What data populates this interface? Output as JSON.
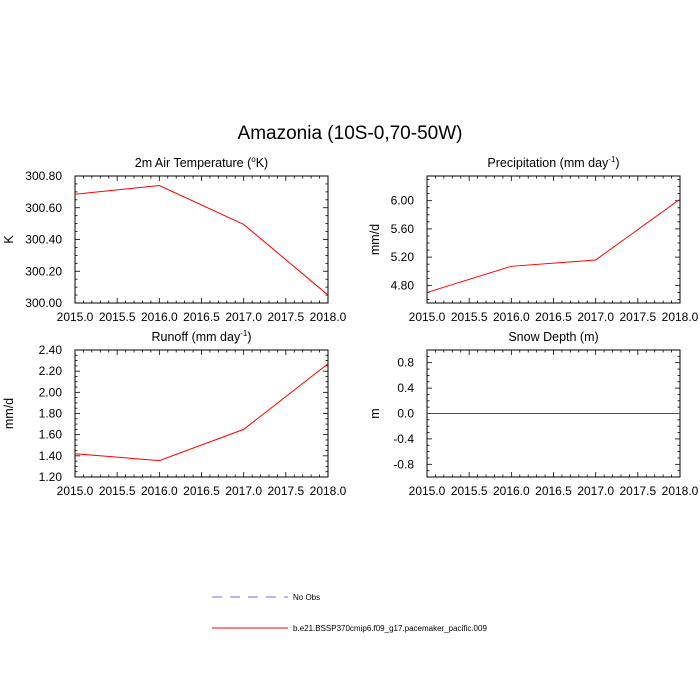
{
  "figure": {
    "title": "Amazonia (10S-0,70-50W)"
  },
  "legend": {
    "items": [
      {
        "label": "No Obs",
        "color": "#6a6aff",
        "dash": true
      },
      {
        "label": "b.e21.BSSP370cmip6.f09_g17.pacemaker_pacific.009",
        "color": "#ff0000",
        "dash": false
      }
    ]
  },
  "chart_data": [
    {
      "type": "line",
      "title": "2m Air Temperature (",
      "title_sup": "o",
      "title_after": "K)",
      "ylabel": "K",
      "x": [
        2015.0,
        2016.0,
        2017.0,
        2018.0
      ],
      "series": [
        {
          "values": [
            300.685,
            300.74,
            300.495,
            300.05
          ],
          "color": "#ff0000"
        }
      ],
      "xlim": [
        2015.0,
        2018.0
      ],
      "ylim": [
        300.0,
        300.8
      ],
      "xticks": [
        2015.0,
        2015.5,
        2016.0,
        2016.5,
        2017.0,
        2017.5,
        2018.0
      ],
      "xticklabels": [
        "2015.0",
        "2015.5",
        "2016.0",
        "2016.5",
        "2017.0",
        "2017.5",
        "2018.0"
      ],
      "yticks": [
        300.0,
        300.2,
        300.4,
        300.6,
        300.8
      ],
      "yticklabels": [
        "300.00",
        "300.20",
        "300.40",
        "300.60",
        "300.80"
      ],
      "yminor": 0.05
    },
    {
      "type": "line",
      "title": "Precipitation (mm day",
      "title_sup": "-1",
      "title_after": ")",
      "ylabel": "mm/d",
      "x": [
        2015.0,
        2016.0,
        2017.0,
        2018.0
      ],
      "series": [
        {
          "values": [
            4.7,
            5.07,
            5.16,
            6.02
          ],
          "color": "#ff0000"
        }
      ],
      "xlim": [
        2015.0,
        2018.0
      ],
      "ylim": [
        4.55,
        6.35
      ],
      "xticks": [
        2015.0,
        2015.5,
        2016.0,
        2016.5,
        2017.0,
        2017.5,
        2018.0
      ],
      "xticklabels": [
        "2015.0",
        "2015.5",
        "2016.0",
        "2016.5",
        "2017.0",
        "2017.5",
        "2018.0"
      ],
      "yticks": [
        4.8,
        5.2,
        5.6,
        6.0
      ],
      "yticklabels": [
        "4.80",
        "5.20",
        "5.60",
        "6.00"
      ],
      "yminor": 0.1
    },
    {
      "type": "line",
      "title": "Runoff (mm day",
      "title_sup": "-1",
      "title_after": ")",
      "ylabel": "mm/d",
      "x": [
        2015.0,
        2016.0,
        2017.0,
        2018.0
      ],
      "series": [
        {
          "values": [
            1.42,
            1.355,
            1.65,
            2.27
          ],
          "color": "#ff0000"
        }
      ],
      "xlim": [
        2015.0,
        2018.0
      ],
      "ylim": [
        1.2,
        2.4
      ],
      "xticks": [
        2015.0,
        2015.5,
        2016.0,
        2016.5,
        2017.0,
        2017.5,
        2018.0
      ],
      "xticklabels": [
        "2015.0",
        "2015.5",
        "2016.0",
        "2016.5",
        "2017.0",
        "2017.5",
        "2018.0"
      ],
      "yticks": [
        1.2,
        1.4,
        1.6,
        1.8,
        2.0,
        2.2,
        2.4
      ],
      "yticklabels": [
        "1.20",
        "1.40",
        "1.60",
        "1.80",
        "2.00",
        "2.20",
        "2.40"
      ],
      "yminor": 0.05
    },
    {
      "type": "line",
      "title": "Snow Depth (m)",
      "title_sup": "",
      "title_after": "",
      "ylabel": "m",
      "x": [
        2015.0,
        2016.0,
        2017.0,
        2018.0
      ],
      "series": [
        {
          "values": [
            0.0,
            0.0,
            0.0,
            0.0
          ],
          "color": "#ff0000"
        }
      ],
      "xlim": [
        2015.0,
        2018.0
      ],
      "ylim": [
        -1.0,
        1.0
      ],
      "xticks": [
        2015.0,
        2015.5,
        2016.0,
        2016.5,
        2017.0,
        2017.5,
        2018.0
      ],
      "xticklabels": [
        "2015.0",
        "2015.5",
        "2016.0",
        "2016.5",
        "2017.0",
        "2017.5",
        "2018.0"
      ],
      "yticks": [
        -0.8,
        -0.4,
        0.0,
        0.4,
        0.8
      ],
      "yticklabels": [
        "-0.8",
        "-0.4",
        "0.0",
        "0.4",
        "0.8"
      ],
      "yminor": 0.1
    }
  ]
}
